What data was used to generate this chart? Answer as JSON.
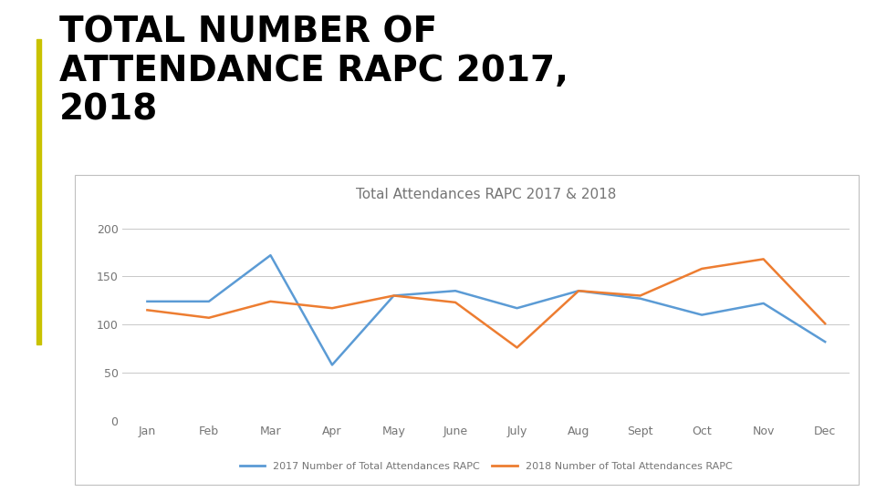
{
  "title_line1": "TOTAL NUMBER OF",
  "title_line2": "ATTENDANCE RAPC 2017,",
  "title_line3": "2018",
  "chart_title": "Total Attendances RAPC 2017 & 2018",
  "months": [
    "Jan",
    "Feb",
    "Mar",
    "Apr",
    "May",
    "June",
    "July",
    "Aug",
    "Sept",
    "Oct",
    "Nov",
    "Dec"
  ],
  "data_2017": [
    124,
    124,
    172,
    58,
    130,
    135,
    117,
    135,
    127,
    110,
    122,
    82
  ],
  "data_2018": [
    115,
    107,
    124,
    117,
    130,
    123,
    76,
    135,
    130,
    158,
    168,
    101
  ],
  "color_2017": "#5B9BD5",
  "color_2018": "#ED7D31",
  "legend_2017": "2017 Number of Total Attendances RAPC",
  "legend_2018": "2018 Number of Total Attendances RAPC",
  "ylim": [
    0,
    220
  ],
  "yticks": [
    0,
    50,
    100,
    150,
    200
  ],
  "accent_bar_color": "#C9C200",
  "background_color": "#FFFFFF",
  "title_color": "#000000",
  "grid_color": "#C8C8C8",
  "chart_border_color": "#BFBFBF",
  "title_fontsize": 28,
  "chart_title_fontsize": 11,
  "legend_fontsize": 8,
  "tick_fontsize": 9,
  "axis_text_color": "#757575"
}
